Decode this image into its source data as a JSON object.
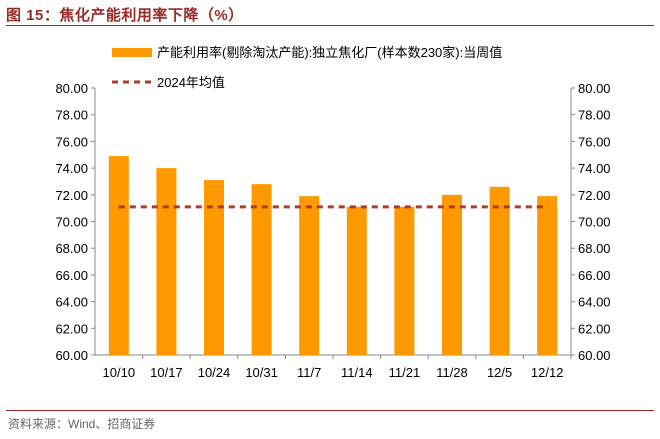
{
  "header": {
    "title": "图 15：焦化产能利用率下降（%）"
  },
  "footer": {
    "source": "资料来源：Wind、招商证券"
  },
  "colors": {
    "bar": "#FF9900",
    "average_line": "#B03A2E",
    "title": "#9a2a2a"
  },
  "chart_data": {
    "type": "bar",
    "categories": [
      "10/10",
      "10/17",
      "10/24",
      "10/31",
      "11/7",
      "11/14",
      "11/21",
      "11/28",
      "12/5",
      "12/12"
    ],
    "series": [
      {
        "name": "产能利用率(剔除淘汰产能):独立焦化厂(样本数230家):当周值",
        "type": "bar",
        "values": [
          74.9,
          74.0,
          73.1,
          72.8,
          71.9,
          71.1,
          71.1,
          72.0,
          72.6,
          71.9
        ]
      },
      {
        "name": "2024年均值",
        "type": "line-dashed",
        "value": 71.1
      }
    ],
    "ylim": [
      60,
      80
    ],
    "yticks": [
      "60.00",
      "62.00",
      "64.00",
      "66.00",
      "68.00",
      "70.00",
      "72.00",
      "74.00",
      "76.00",
      "78.00",
      "80.00"
    ],
    "secondary_yticks": [
      "60.00",
      "62.00",
      "64.00",
      "66.00",
      "68.00",
      "70.00",
      "72.00",
      "74.00",
      "76.00",
      "78.00",
      "80.00"
    ],
    "xlabel": "",
    "ylabel": "",
    "grid": false,
    "legend_position": "top-center"
  }
}
